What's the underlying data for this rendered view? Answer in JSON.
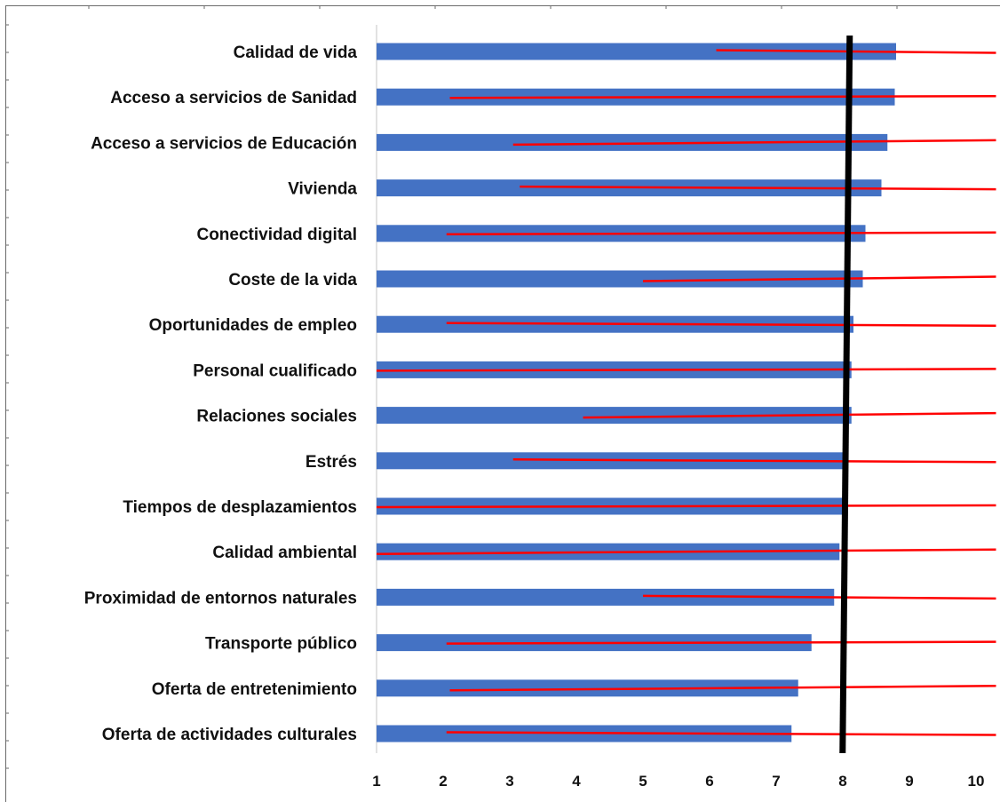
{
  "chart_data": {
    "type": "bar",
    "orientation": "horizontal",
    "categories": [
      "Calidad de vida",
      "Acceso a servicios de Sanidad",
      "Acceso a servicios de Educación",
      "Vivienda",
      "Conectividad digital",
      "Coste de la vida",
      "Oportunidades de empleo",
      "Personal cualificado",
      "Relaciones sociales",
      "Estrés",
      "Tiempos de desplazamientos",
      "Calidad ambiental",
      "Proximidad de entornos naturales",
      "Transporte público",
      "Oferta de entretenimiento",
      "Oferta de actividades culturales"
    ],
    "values": [
      8.8,
      8.78,
      8.67,
      8.58,
      8.34,
      8.3,
      8.16,
      8.13,
      8.13,
      8.0,
      8.0,
      7.95,
      7.87,
      7.53,
      7.33,
      7.23
    ],
    "ranges": [
      [
        6.1,
        10.3
      ],
      [
        2.1,
        10.3
      ],
      [
        3.05,
        10.3
      ],
      [
        3.15,
        10.3
      ],
      [
        2.05,
        10.3
      ],
      [
        5.0,
        10.3
      ],
      [
        2.05,
        10.3
      ],
      [
        1.0,
        10.3
      ],
      [
        4.1,
        10.3
      ],
      [
        3.05,
        10.3
      ],
      [
        1.0,
        10.3
      ],
      [
        1.0,
        10.3
      ],
      [
        5.0,
        10.3
      ],
      [
        2.05,
        10.3
      ],
      [
        2.1,
        10.3
      ],
      [
        2.05,
        10.3
      ]
    ],
    "reference_line": 8.05,
    "xlim": [
      1,
      10
    ],
    "xticks": [
      "1",
      "2",
      "3",
      "4",
      "5",
      "6",
      "7",
      "8",
      "9",
      "10"
    ],
    "grid": false,
    "legend": false,
    "colors": {
      "bar": "#4472c4",
      "range": "#ff0000",
      "reference": "#000000"
    }
  }
}
